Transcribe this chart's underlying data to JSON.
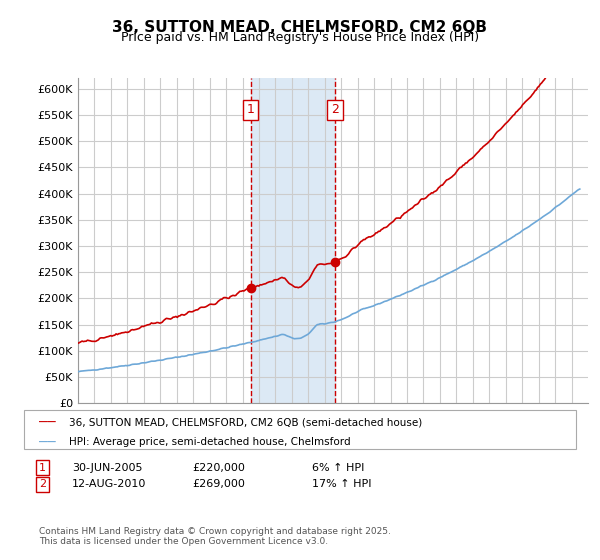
{
  "title_line1": "36, SUTTON MEAD, CHELMSFORD, CM2 6QB",
  "title_line2": "Price paid vs. HM Land Registry's House Price Index (HPI)",
  "xlabel": "",
  "ylabel": "",
  "ylim": [
    0,
    620000
  ],
  "yticks": [
    0,
    50000,
    100000,
    150000,
    200000,
    250000,
    300000,
    350000,
    400000,
    450000,
    500000,
    550000,
    600000
  ],
  "ytick_labels": [
    "£0",
    "£50K",
    "£100K",
    "£150K",
    "£200K",
    "£250K",
    "£300K",
    "£350K",
    "£400K",
    "£450K",
    "£500K",
    "£550K",
    "£600K"
  ],
  "hpi_color": "#6ea8d8",
  "price_color": "#cc0000",
  "background_color": "#ffffff",
  "grid_color": "#cccccc",
  "sale1_date": 2005.5,
  "sale1_price": 220000,
  "sale1_label": "1",
  "sale2_date": 2010.62,
  "sale2_price": 269000,
  "sale2_label": "2",
  "shade_color": "#dce9f5",
  "legend_line1": "36, SUTTON MEAD, CHELMSFORD, CM2 6QB (semi-detached house)",
  "legend_line2": "HPI: Average price, semi-detached house, Chelmsford",
  "annotation1_date": "30-JUN-2005",
  "annotation1_price": "£220,000",
  "annotation1_hpi": "6% ↑ HPI",
  "annotation2_date": "12-AUG-2010",
  "annotation2_price": "£269,000",
  "annotation2_hpi": "17% ↑ HPI",
  "footer": "Contains HM Land Registry data © Crown copyright and database right 2025.\nThis data is licensed under the Open Government Licence v3.0.",
  "xmin": 1995,
  "xmax": 2026
}
